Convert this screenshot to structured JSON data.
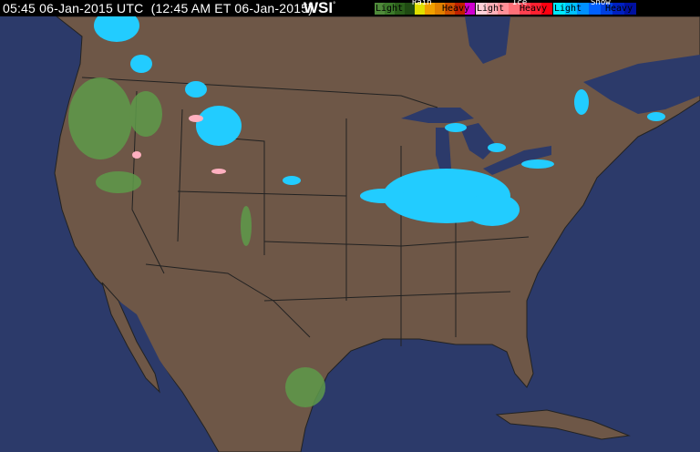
{
  "header": {
    "timestamp": "05:45 06-Jan-2015 UTC  (12:45 AM ET 06-Jan-2015)",
    "logo": "WSI",
    "logo_mark": "°"
  },
  "legend": {
    "rain": {
      "title": "Rain",
      "light": "Light",
      "heavy": "Heavy",
      "colors": [
        "#4f8a3a",
        "#3c7a2a",
        "#2a5f1a",
        "#1f4a12",
        "#e0e000",
        "#f0a000",
        "#e08000",
        "#d05000",
        "#c02000",
        "#d000d0"
      ]
    },
    "ice": {
      "title": "Ice",
      "light": "Light",
      "heavy": "Heavy",
      "colors": [
        "#ffd0d8",
        "#ffb0b8",
        "#ff9098",
        "#ff7078",
        "#ff4050",
        "#ff2030",
        "#ff0010"
      ]
    },
    "snow": {
      "title": "Snow",
      "light": "Light",
      "heavy": "Heavy",
      "colors": [
        "#00e8ff",
        "#00c0ff",
        "#0090ff",
        "#0060ff",
        "#0040e0",
        "#0020c0",
        "#0010a0"
      ]
    }
  },
  "map": {
    "ocean_color": "#2c3a6a",
    "land_color": "#6e5747",
    "border_color": "#1a1a1a"
  }
}
